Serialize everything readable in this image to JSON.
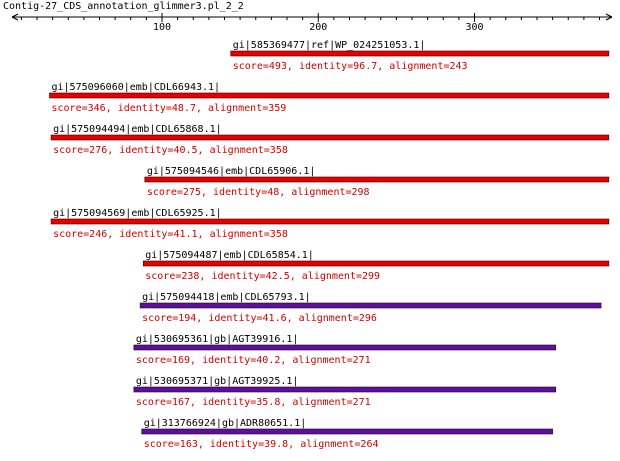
{
  "title": "Contig-27_CDS_annotation_glimmer3.pl_2_2",
  "axis": {
    "xlim": [
      4,
      388
    ],
    "xticks": [
      100,
      200,
      300
    ],
    "minor_ticks": [
      10,
      20,
      30,
      40,
      50,
      60,
      70,
      80,
      90,
      110,
      120,
      130,
      140,
      150,
      160,
      170,
      180,
      190,
      210,
      220,
      230,
      240,
      250,
      260,
      270,
      280,
      290,
      310,
      320,
      330,
      340,
      350,
      360,
      370,
      380
    ]
  },
  "hits": [
    {
      "label": "gi|585369477|ref|WP_024251053.1|",
      "score": "score=493, identity=96.7, alignment=243",
      "start": 144,
      "end": 386,
      "color": "#e80000"
    },
    {
      "label": "gi|575096060|emb|CDL66943.1|",
      "score": "score=346, identity=48.7, alignment=359",
      "start": 28,
      "end": 386,
      "color": "#e80000"
    },
    {
      "label": "gi|575094494|emb|CDL65868.1|",
      "score": "score=276, identity=40.5, alignment=358",
      "start": 29,
      "end": 386,
      "color": "#e80000"
    },
    {
      "label": "gi|575094546|emb|CDL65906.1|",
      "score": "score=275, identity=48, alignment=298",
      "start": 89,
      "end": 386,
      "color": "#e80000"
    },
    {
      "label": "gi|575094569|emb|CDL65925.1|",
      "score": "score=246, identity=41.1, alignment=358",
      "start": 29,
      "end": 386,
      "color": "#e80000"
    },
    {
      "label": "gi|575094487|emb|CDL65854.1|",
      "score": "score=238, identity=42.5, alignment=299",
      "start": 88,
      "end": 386,
      "color": "#e80000"
    },
    {
      "label": "gi|575094418|emb|CDL65793.1|",
      "score": "score=194, identity=41.6, alignment=296",
      "start": 86,
      "end": 381,
      "color": "#5a10a0"
    },
    {
      "label": "gi|530695361|gb|AGT39916.1|",
      "score": "score=169, identity=40.2, alignment=271",
      "start": 82,
      "end": 352,
      "color": "#5a10a0"
    },
    {
      "label": "gi|530695371|gb|AGT39925.1|",
      "score": "score=167, identity=35.8, alignment=271",
      "start": 82,
      "end": 352,
      "color": "#5a10a0"
    },
    {
      "label": "gi|313766924|gb|ADR80651.1|",
      "score": "score=163, identity=39.8, alignment=264",
      "start": 87,
      "end": 350,
      "color": "#5a10a0"
    }
  ]
}
